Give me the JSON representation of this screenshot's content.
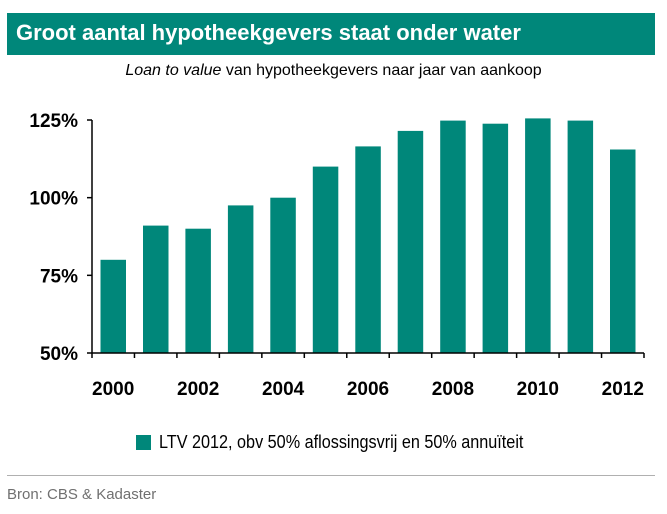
{
  "title": "Groot aantal hypotheekgevers staat onder water",
  "subtitle_italic": "Loan to value",
  "subtitle_rest": " van hypotheekgevers naar jaar van aankoop",
  "legend_label": "LTV 2012, obv 50% aflossingsvrij en 50% annuïteit",
  "source": "Bron: CBS & Kadaster",
  "colors": {
    "accent": "#00877a",
    "text": "#000000",
    "source": "#707070"
  },
  "chart_data": {
    "type": "bar",
    "categories": [
      "2000",
      "2001",
      "2002",
      "2003",
      "2004",
      "2005",
      "2006",
      "2007",
      "2008",
      "2009",
      "2010",
      "2011",
      "2012"
    ],
    "x_tick_labels": [
      "2000",
      "",
      "2002",
      "",
      "2004",
      "",
      "2006",
      "",
      "2008",
      "",
      "2010",
      "",
      "2012"
    ],
    "series": [
      {
        "name": "LTV 2012, obv 50% aflossingsvrij en 50% annuïteit",
        "values": [
          80,
          91,
          90,
          97.5,
          100,
          110,
          116.5,
          121.5,
          124.8,
          123.8,
          125.5,
          124.8,
          115.5
        ]
      }
    ],
    "ylim": [
      50,
      125
    ],
    "y_ticks": [
      50,
      75,
      100,
      125
    ],
    "y_tick_labels": [
      "50%",
      "75%",
      "100%",
      "125%"
    ],
    "legend_position": "bottom",
    "grid": false
  }
}
